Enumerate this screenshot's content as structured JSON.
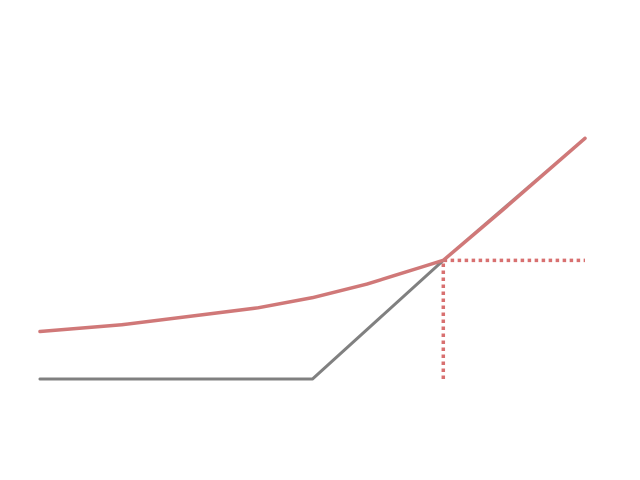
{
  "chart_data": {
    "type": "line",
    "title": "",
    "xlabel": "",
    "ylabel": "",
    "xlim": [
      0,
      10
    ],
    "ylim": [
      0,
      10
    ],
    "grid": false,
    "axes_visible": false,
    "series": [
      {
        "color": "#808080",
        "style": "solid",
        "x": [
          0,
          5,
          7.4,
          10
        ],
        "y": [
          0,
          0,
          3.5,
          7.1
        ]
      },
      {
        "color": "#d07878",
        "style": "solid",
        "x": [
          0,
          1.5,
          3,
          4,
          5,
          6,
          6.5,
          7,
          7.4,
          8.5,
          10
        ],
        "y": [
          1.4,
          1.6,
          1.9,
          2.1,
          2.4,
          2.8,
          3.05,
          3.3,
          3.5,
          5.0,
          7.1
        ]
      }
    ],
    "reference_lines": [
      {
        "color": "#d87070",
        "style": "dotted",
        "x": [
          7.4,
          7.4,
          10
        ],
        "y": [
          0,
          3.5,
          3.5
        ]
      }
    ]
  }
}
